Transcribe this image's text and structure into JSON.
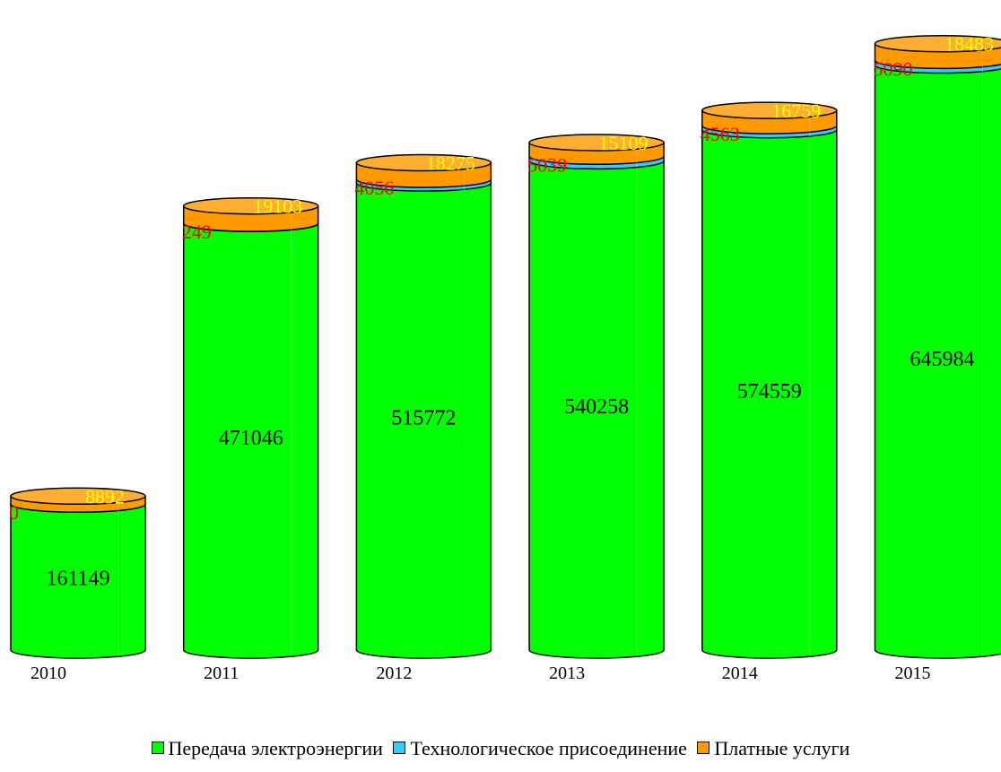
{
  "chart_data": {
    "type": "bar",
    "categories": [
      "2010",
      "2011",
      "2012",
      "2013",
      "2014",
      "2015"
    ],
    "series": [
      {
        "name": "Передача электроэнергии",
        "values": [
          161149,
          471046,
          515772,
          540258,
          574559,
          645984
        ],
        "color": "#00ff00",
        "label_color": "#000000"
      },
      {
        "name": "Технологическое присоединение",
        "values": [
          0,
          249,
          4056,
          5039,
          4563,
          5090
        ],
        "color": "#33ccff",
        "label_color": "#ff0000"
      },
      {
        "name": "Платные услуги",
        "values": [
          8892,
          19103,
          18275,
          15109,
          16759,
          18483
        ],
        "color": "#ff9900",
        "label_color": "#ffff00"
      }
    ],
    "stacked": true,
    "shape": "cylinder",
    "legend": "bottom",
    "grid": false
  }
}
